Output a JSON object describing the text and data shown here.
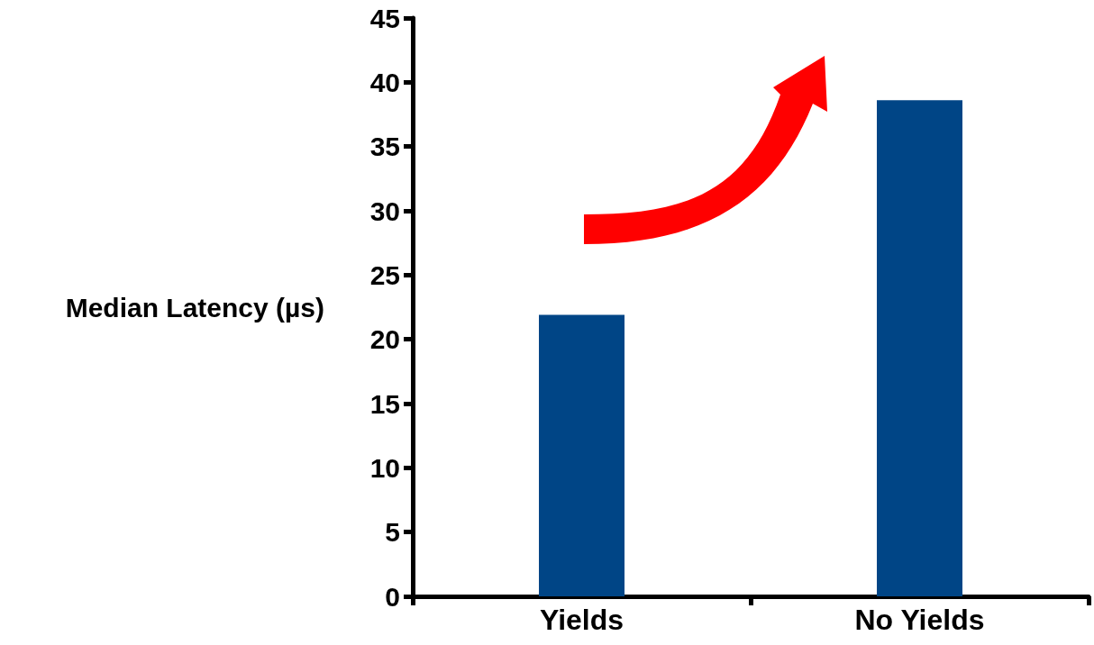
{
  "chart_data": {
    "type": "bar",
    "ylabel": "Median Latency (µs)",
    "categories": [
      "Yields",
      "No Yields"
    ],
    "values": [
      21.9,
      38.6
    ],
    "color": "#004586",
    "ylim": [
      0,
      45
    ],
    "yticks": [
      0,
      5,
      10,
      15,
      20,
      25,
      30,
      35,
      40,
      45
    ],
    "grid": false
  }
}
